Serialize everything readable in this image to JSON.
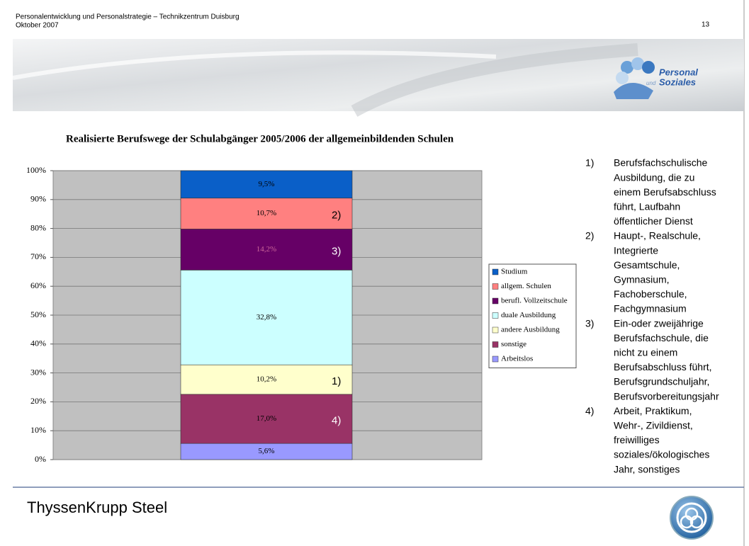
{
  "header": {
    "line1": "Personalentwicklung und Personalstrategie – Technikzentrum Duisburg",
    "line2": "Oktober 2007",
    "page": "13",
    "logo_line1": "Personal",
    "logo_small": "und",
    "logo_line2": "Soziales"
  },
  "chart_data": {
    "type": "stacked_bar",
    "title": "Realisierte Berufswege der Schulabgänger 2005/2006 der allgemeinbildenden Schulen",
    "categories": [
      null
    ],
    "ylim": [
      0,
      100
    ],
    "yticks": [
      {
        "value": 0,
        "label": "0%"
      },
      {
        "value": 10,
        "label": "10%"
      },
      {
        "value": 20,
        "label": "20%"
      },
      {
        "value": 30,
        "label": "30%"
      },
      {
        "value": 40,
        "label": "40%"
      },
      {
        "value": 50,
        "label": "50%"
      },
      {
        "value": 60,
        "label": "60%"
      },
      {
        "value": 70,
        "label": "70%"
      },
      {
        "value": 80,
        "label": "80%"
      },
      {
        "value": 90,
        "label": "90%"
      },
      {
        "value": 100,
        "label": "100%"
      }
    ],
    "grid": true,
    "legend": "right",
    "series": [
      {
        "name": "Arbeitslos",
        "color": "#9999ff",
        "values": [
          5.6
        ],
        "value_labels": [
          "5,6%"
        ]
      },
      {
        "name": "sonstige",
        "color": "#993366",
        "values": [
          17.0
        ],
        "value_labels": [
          "17,0%"
        ],
        "annotation": "4)"
      },
      {
        "name": "andere Ausbildung",
        "color": "#ffffcc",
        "values": [
          10.2
        ],
        "value_labels": [
          "10,2%"
        ],
        "annotation": "1)"
      },
      {
        "name": "duale Ausbildung",
        "color": "#ccffff",
        "values": [
          32.8
        ],
        "value_labels": [
          "32,8%"
        ]
      },
      {
        "name": "berufl. Vollzeitschule",
        "color": "#660066",
        "values": [
          14.2
        ],
        "value_labels": [
          "14,2%"
        ],
        "annotation": "3)"
      },
      {
        "name": "allgem. Schulen",
        "color": "#ff8080",
        "values": [
          10.7
        ],
        "value_labels": [
          "10,7%"
        ],
        "annotation": "2)"
      },
      {
        "name": "Studium",
        "color": "#0a5fc8",
        "values": [
          9.5
        ],
        "value_labels": [
          "9,5%"
        ]
      }
    ]
  },
  "footnotes": [
    {
      "number": "1)",
      "lines": [
        "Berufsfachschulische",
        "Ausbildung, die zu",
        "einem Berufsabschluss",
        "führt, Laufbahn",
        "öffentlicher Dienst"
      ]
    },
    {
      "number": "2)",
      "lines": [
        "Haupt-, Realschule,",
        "Integrierte",
        "Gesamtschule,",
        "Gymnasium,",
        "Fachoberschule,",
        "Fachgymnasium"
      ]
    },
    {
      "number": "3)",
      "lines": [
        "Ein-oder zweijährige",
        "Berufsfachschule, die",
        "nicht zu einem",
        "Berufsabschluss führt,",
        "Berufsgrundschuljahr,",
        "Berufsvorbereitungsjahr"
      ]
    },
    {
      "number": "4)",
      "lines": [
        "Arbeit, Praktikum,",
        "Wehr-, Zivildienst,",
        "freiwilliges",
        "soziales/ökologisches",
        "Jahr, sonstiges"
      ]
    }
  ],
  "footer": {
    "company": "ThyssenKrupp Steel"
  }
}
